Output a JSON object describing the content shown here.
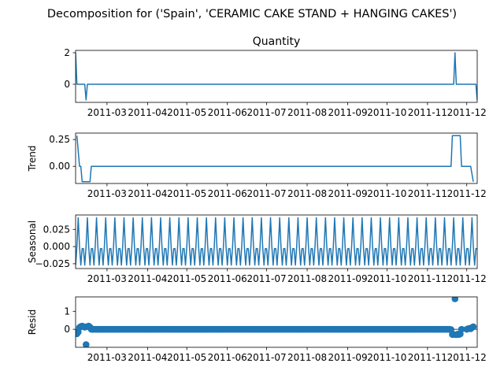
{
  "figure": {
    "suptitle": "Decomposition for ('Spain', 'CERAMIC CAKE STAND + HANGING CAKES')",
    "color": "#1f77b4"
  },
  "chart_data": [
    {
      "type": "line",
      "title": "Quantity",
      "xlabel": "",
      "ylabel": "",
      "x_range": [
        "2011-02-05",
        "2011-12-09"
      ],
      "ylim": [
        -1.15,
        2.15
      ],
      "yticks": [
        0,
        2
      ],
      "ytick_labels": [
        "0",
        "2"
      ],
      "xticks": [
        "2011-03-01",
        "2011-04-01",
        "2011-05-01",
        "2011-06-01",
        "2011-07-01",
        "2011-08-01",
        "2011-09-01",
        "2011-10-01",
        "2011-11-01",
        "2011-12-01"
      ],
      "xtick_labels": [
        "2011-03",
        "2011-04",
        "2011-05",
        "2011-06",
        "2011-07",
        "2011-08",
        "2011-09",
        "2011-10",
        "2011-11",
        "2011-12"
      ],
      "grid": false,
      "series": [
        {
          "points": [
            [
              "2011-02-05",
              2
            ],
            [
              "2011-02-06",
              0
            ],
            [
              "2011-02-12",
              0
            ],
            [
              "2011-02-13",
              -1
            ],
            [
              "2011-02-14",
              0
            ],
            [
              "2011-11-21",
              0
            ],
            [
              "2011-11-22",
              2
            ],
            [
              "2011-11-23",
              0
            ],
            [
              "2011-12-08",
              0
            ],
            [
              "2011-12-09",
              -1
            ]
          ]
        }
      ]
    },
    {
      "type": "line",
      "title": "",
      "xlabel": "",
      "ylabel": "Trend",
      "x_range": [
        "2011-02-05",
        "2011-12-09"
      ],
      "ylim": [
        -0.16,
        0.31
      ],
      "yticks": [
        0.0,
        0.25
      ],
      "ytick_labels": [
        "0.00",
        "0.25"
      ],
      "xticks": [
        "2011-03-01",
        "2011-04-01",
        "2011-05-01",
        "2011-06-01",
        "2011-07-01",
        "2011-08-01",
        "2011-09-01",
        "2011-10-01",
        "2011-11-01",
        "2011-12-01"
      ],
      "xtick_labels": [
        "2011-03",
        "2011-04",
        "2011-05",
        "2011-06",
        "2011-07",
        "2011-08",
        "2011-09",
        "2011-10",
        "2011-11",
        "2011-12"
      ],
      "grid": false,
      "series": [
        {
          "points": [
            [
              "2011-02-06",
              0.286
            ],
            [
              "2011-02-08",
              0.0
            ],
            [
              "2011-02-09",
              0.0
            ],
            [
              "2011-02-10",
              -0.143
            ],
            [
              "2011-02-16",
              -0.143
            ],
            [
              "2011-02-17",
              0.0
            ],
            [
              "2011-11-19",
              0.0
            ],
            [
              "2011-11-20",
              0.286
            ],
            [
              "2011-11-26",
              0.286
            ],
            [
              "2011-11-27",
              0.0
            ],
            [
              "2011-12-04",
              0.0
            ],
            [
              "2011-12-06",
              -0.143
            ]
          ]
        }
      ]
    },
    {
      "type": "line",
      "title": "",
      "xlabel": "",
      "ylabel": "Seasonal",
      "x_range": [
        "2011-02-05",
        "2011-12-09"
      ],
      "ylim": [
        -0.032,
        0.046
      ],
      "yticks": [
        -0.025,
        0.0,
        0.025
      ],
      "ytick_labels": [
        "−0.025",
        "0.000",
        "0.025"
      ],
      "xticks": [
        "2011-03-01",
        "2011-04-01",
        "2011-05-01",
        "2011-06-01",
        "2011-07-01",
        "2011-08-01",
        "2011-09-01",
        "2011-10-01",
        "2011-11-01",
        "2011-12-01"
      ],
      "xtick_labels": [
        "2011-03",
        "2011-04",
        "2011-05",
        "2011-06",
        "2011-07",
        "2011-08",
        "2011-09",
        "2011-10",
        "2011-11",
        "2011-12"
      ],
      "grid": false,
      "series": [
        {
          "period_days": 7,
          "start": "2011-02-05",
          "end": "2011-12-09",
          "pattern": [
            -0.027,
            0.0,
            0.042,
            0.0,
            -0.027,
            -0.003,
            -0.003
          ]
        }
      ]
    },
    {
      "type": "scatter",
      "title": "",
      "xlabel": "",
      "ylabel": "Resid",
      "x_range": [
        "2011-02-05",
        "2011-12-09"
      ],
      "ylim": [
        -1.0,
        1.8
      ],
      "yticks": [
        0,
        1
      ],
      "ytick_labels": [
        "0",
        "1"
      ],
      "xticks": [
        "2011-03-01",
        "2011-04-01",
        "2011-05-01",
        "2011-06-01",
        "2011-07-01",
        "2011-08-01",
        "2011-09-01",
        "2011-10-01",
        "2011-11-01",
        "2011-12-01"
      ],
      "xtick_labels": [
        "2011-03",
        "2011-04",
        "2011-05",
        "2011-06",
        "2011-07",
        "2011-08",
        "2011-09",
        "2011-10",
        "2011-11",
        "2011-12"
      ],
      "grid": false,
      "baseline": 0,
      "series": [
        {
          "points": [
            [
              "2011-02-06",
              -0.25
            ],
            [
              "2011-02-07",
              -0.15
            ],
            [
              "2011-02-08",
              0.1
            ],
            [
              "2011-02-09",
              0.15
            ],
            [
              "2011-02-10",
              0.18
            ],
            [
              "2011-02-11",
              0.15
            ],
            [
              "2011-02-12",
              0.12
            ],
            [
              "2011-02-13",
              -0.85
            ],
            [
              "2011-02-14",
              0.15
            ],
            [
              "2011-02-15",
              0.18
            ],
            [
              "2011-02-16",
              0.12
            ],
            [
              "2011-02-17",
              0.0
            ],
            [
              "2011-11-18",
              0.0
            ],
            [
              "2011-11-19",
              -0.02
            ],
            [
              "2011-11-20",
              -0.29
            ],
            [
              "2011-11-21",
              -0.29
            ],
            [
              "2011-11-22",
              1.69
            ],
            [
              "2011-11-23",
              -0.3
            ],
            [
              "2011-11-24",
              -0.27
            ],
            [
              "2011-11-25",
              -0.29
            ],
            [
              "2011-11-26",
              -0.26
            ],
            [
              "2011-11-27",
              0.0
            ],
            [
              "2011-12-01",
              0.0
            ],
            [
              "2011-12-02",
              0.03
            ],
            [
              "2011-12-03",
              0.05
            ],
            [
              "2011-12-04",
              0.03
            ],
            [
              "2011-12-05",
              0.1
            ],
            [
              "2011-12-06",
              0.14
            ]
          ]
        }
      ]
    }
  ]
}
